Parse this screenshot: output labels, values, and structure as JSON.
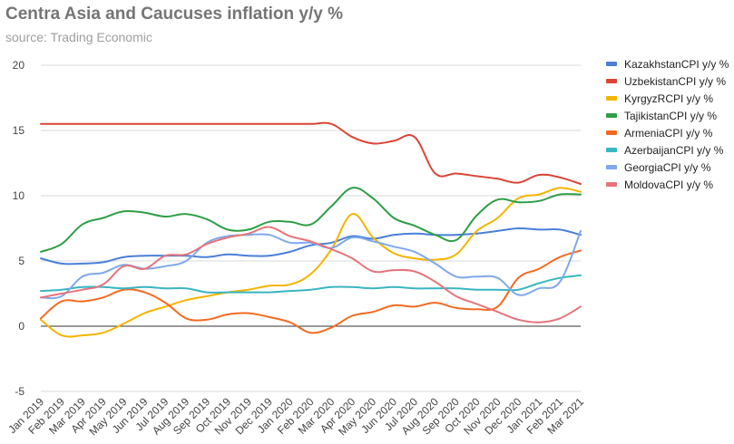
{
  "title": "Centra Asia and Caucuses inflation y/y %",
  "subtitle": "source: Trading Economic",
  "chart_data": {
    "type": "line",
    "title": "Centra Asia and Caucuses inflation y/y %",
    "subtitle": "source: Trading Economic",
    "xlabel": "",
    "ylabel": "",
    "ylim": [
      -5,
      20
    ],
    "yticks": [
      -5,
      0,
      5,
      10,
      15,
      20
    ],
    "grid": true,
    "legend": "right",
    "categories": [
      "Jan 2019",
      "Feb 2019",
      "Mar 2019",
      "Apr 2019",
      "May 2019",
      "Jun 2019",
      "Jul 2019",
      "Aug 2019",
      "Sep 2019",
      "Oct 2019",
      "Nov 2019",
      "Dec 2019",
      "Jan 2020",
      "Feb 2020",
      "Mar 2020",
      "Apr 2020",
      "May 2020",
      "Jun 2020",
      "Jul 2020",
      "Aug 2020",
      "Sep 2020",
      "Oct 2020",
      "Nov 2020",
      "Dec 2020",
      "Jan 2021",
      "Feb 2021",
      "Mar 2021"
    ],
    "series": [
      {
        "name": "KazakhstanCPI y/y %",
        "color": "#4a7fd8",
        "values": [
          5.2,
          4.8,
          4.8,
          4.9,
          5.3,
          5.4,
          5.4,
          5.4,
          5.3,
          5.5,
          5.4,
          5.4,
          5.7,
          6.2,
          6.4,
          6.9,
          6.7,
          7.0,
          7.1,
          7.0,
          7.0,
          7.1,
          7.3,
          7.5,
          7.4,
          7.4,
          7.0
        ]
      },
      {
        "name": "UzbekistanCPI y/y %",
        "color": "#db4437",
        "values": [
          15.5,
          15.5,
          15.5,
          15.5,
          15.5,
          15.5,
          15.5,
          15.5,
          15.5,
          15.5,
          15.5,
          15.5,
          15.5,
          15.5,
          15.5,
          14.5,
          14.0,
          14.2,
          14.5,
          11.7,
          11.7,
          11.5,
          11.3,
          11.0,
          11.6,
          11.4,
          10.9
        ]
      },
      {
        "name": "KyrgyzRCPI y/y %",
        "color": "#f4b400",
        "values": [
          0.5,
          -0.7,
          -0.7,
          -0.5,
          0.2,
          1.0,
          1.5,
          2.0,
          2.3,
          2.6,
          2.8,
          3.1,
          3.2,
          4.0,
          5.9,
          8.6,
          6.8,
          5.6,
          5.2,
          5.1,
          5.5,
          7.3,
          8.3,
          9.8,
          10.1,
          10.6,
          10.3
        ]
      },
      {
        "name": "TajikistanCPI y/y %",
        "color": "#2e9e46",
        "values": [
          5.7,
          6.3,
          7.8,
          8.3,
          8.8,
          8.7,
          8.4,
          8.6,
          8.2,
          7.4,
          7.4,
          8.0,
          8.0,
          7.8,
          9.2,
          10.6,
          9.8,
          8.3,
          7.7,
          7.0,
          6.6,
          8.5,
          9.7,
          9.5,
          9.6,
          10.1,
          10.1
        ]
      },
      {
        "name": "ArmeniaCPI y/y %",
        "color": "#f26a21",
        "values": [
          0.6,
          1.9,
          1.9,
          2.2,
          2.8,
          2.6,
          1.8,
          0.6,
          0.5,
          0.9,
          1.0,
          0.7,
          0.3,
          -0.5,
          -0.1,
          0.8,
          1.1,
          1.6,
          1.5,
          1.8,
          1.4,
          1.3,
          1.5,
          3.7,
          4.4,
          5.3,
          5.8
        ]
      },
      {
        "name": "AzerbaijanCPI y/y %",
        "color": "#39b6c2",
        "values": [
          2.7,
          2.8,
          3.0,
          3.0,
          2.9,
          3.0,
          2.9,
          2.9,
          2.6,
          2.6,
          2.6,
          2.6,
          2.7,
          2.8,
          3.0,
          3.0,
          2.9,
          3.0,
          2.9,
          2.9,
          2.9,
          2.8,
          2.8,
          2.8,
          3.3,
          3.7,
          3.9
        ]
      },
      {
        "name": "GeorgiaCPI y/y %",
        "color": "#7ea9ea",
        "values": [
          2.2,
          2.3,
          3.8,
          4.1,
          4.7,
          4.4,
          4.6,
          5.0,
          6.4,
          6.9,
          7.0,
          7.0,
          6.4,
          6.4,
          6.0,
          6.8,
          6.5,
          6.1,
          5.7,
          4.8,
          3.8,
          3.8,
          3.7,
          2.4,
          2.9,
          3.4,
          7.3
        ]
      },
      {
        "name": "MoldovaCPI y/y %",
        "color": "#e6747a",
        "values": [
          2.2,
          2.5,
          2.8,
          3.2,
          4.6,
          4.4,
          5.4,
          5.5,
          6.3,
          6.8,
          7.1,
          7.6,
          6.9,
          6.5,
          5.9,
          5.2,
          4.2,
          4.3,
          4.2,
          3.4,
          2.3,
          1.7,
          1.1,
          0.5,
          0.3,
          0.6,
          1.5
        ]
      }
    ]
  }
}
